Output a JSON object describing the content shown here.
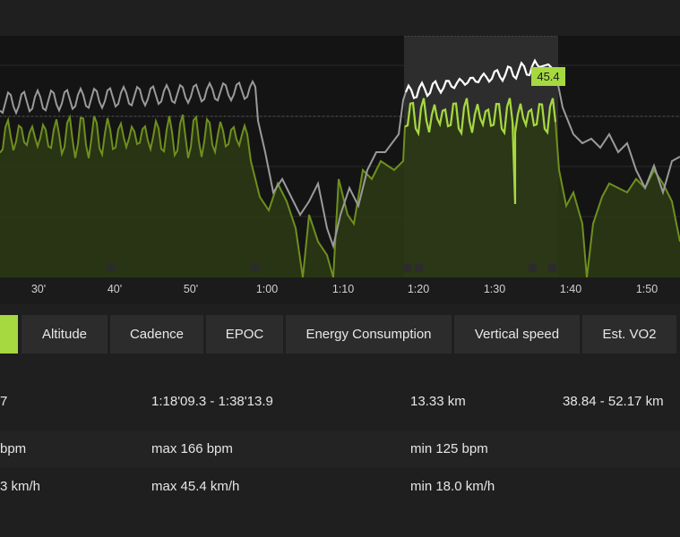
{
  "chart": {
    "highlight_value": "45.4",
    "x_ticks": [
      "30'",
      "40'",
      "50'",
      "1:00",
      "1:10",
      "1:20",
      "1:30",
      "1:40",
      "1:50"
    ],
    "colors": {
      "speed": "#a6d840",
      "heart_rate": "#9a9a9a",
      "heart_rate_selected": "#ffffff",
      "selection": "#2d2d2d"
    }
  },
  "tabs": [
    {
      "label": "",
      "active": true
    },
    {
      "label": "Altitude",
      "active": false
    },
    {
      "label": "Cadence",
      "active": false
    },
    {
      "label": "EPOC",
      "active": false
    },
    {
      "label": "Energy Consumption",
      "active": false
    },
    {
      "label": "Vertical speed",
      "active": false
    },
    {
      "label": "Est. VO2",
      "active": false
    }
  ],
  "stats": {
    "selection": {
      "col1": "7",
      "col2": "1:18'09.3 - 1:38'13.9",
      "col3": "13.33 km",
      "col4": "38.84 - 52.17 km"
    },
    "heart_rate": {
      "col1": "bpm",
      "col2": "max 166 bpm",
      "col3": "min 125 bpm"
    },
    "speed": {
      "col1": "3 km/h",
      "col2": "max 45.4 km/h",
      "col3": "min 18.0 km/h"
    }
  }
}
